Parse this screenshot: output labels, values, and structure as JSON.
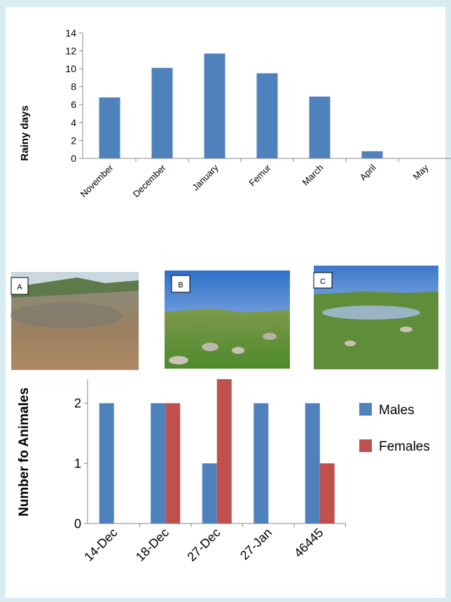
{
  "chart_data": [
    {
      "type": "bar",
      "ylabel": "Rainy days",
      "categories": [
        "November",
        "December",
        "January",
        "Femur",
        "March",
        "April",
        "May"
      ],
      "values": [
        6.8,
        10.1,
        11.7,
        9.5,
        6.9,
        0.8,
        0
      ],
      "color": "#4f81bd",
      "ylim": [
        0,
        14
      ],
      "yticks": [
        0,
        2,
        4,
        6,
        8,
        10,
        12,
        14
      ],
      "grid": false
    },
    {
      "type": "bar",
      "ylabel": "Number fo Animales",
      "categories": [
        "14-Dec",
        "18-Dec",
        "27-Dec",
        "27-Jan",
        "46445"
      ],
      "series": [
        {
          "name": "Males",
          "color": "#4f81bd",
          "values": [
            2,
            2,
            1,
            2,
            2
          ]
        },
        {
          "name": "Females",
          "color": "#c0504d",
          "values": [
            0,
            2,
            2.4,
            0,
            1
          ]
        }
      ],
      "ylim": [
        0,
        2.4
      ],
      "yticks": [
        0,
        1,
        2
      ],
      "grid": false,
      "legend": "right"
    }
  ],
  "photos": [
    {
      "label": "A"
    },
    {
      "label": "B"
    },
    {
      "label": "C"
    }
  ]
}
